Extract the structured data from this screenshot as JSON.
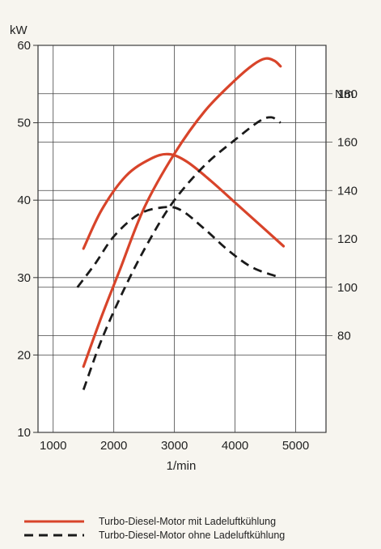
{
  "chart_data": {
    "type": "line",
    "left_unit": "kW",
    "right_unit": "Nm",
    "xlabel": "1/min",
    "x_ticks": [
      1000,
      2000,
      3000,
      4000,
      5000
    ],
    "y_left_ticks": [
      10,
      20,
      30,
      40,
      50,
      60
    ],
    "y_right_ticks": [
      80,
      100,
      120,
      140,
      160,
      180
    ],
    "x_range": [
      750,
      5500
    ],
    "y_left_range": [
      10,
      60
    ],
    "y_right_range": [
      40,
      200
    ],
    "grid": true,
    "legend_position": "bottom",
    "series": [
      {
        "name": "Turbo-Diesel-Motor mit Ladeluftkühlung",
        "axis": "left",
        "quantity": "power",
        "style": "solid",
        "color": "#d8442a",
        "points": [
          [
            1500,
            18.5
          ],
          [
            1800,
            25
          ],
          [
            2100,
            31
          ],
          [
            2500,
            39
          ],
          [
            3000,
            46
          ],
          [
            3500,
            51.5
          ],
          [
            4000,
            55.5
          ],
          [
            4300,
            57.5
          ],
          [
            4500,
            58.3
          ],
          [
            4650,
            58
          ],
          [
            4750,
            57.3
          ]
        ]
      },
      {
        "name": "Turbo-Diesel-Motor mit Ladeluftkühlung",
        "axis": "right",
        "quantity": "torque",
        "style": "solid",
        "color": "#d8442a",
        "points": [
          [
            1500,
            116
          ],
          [
            1800,
            132
          ],
          [
            2200,
            146
          ],
          [
            2600,
            153
          ],
          [
            2900,
            155
          ],
          [
            3200,
            152
          ],
          [
            3600,
            144
          ],
          [
            4000,
            135
          ],
          [
            4400,
            126
          ],
          [
            4800,
            117
          ]
        ]
      },
      {
        "name": "Turbo-Diesel-Motor ohne Ladeluftkühlung",
        "axis": "left",
        "quantity": "power",
        "style": "dashed",
        "color": "#1a1a1a",
        "points": [
          [
            1500,
            15.5
          ],
          [
            1800,
            22
          ],
          [
            2200,
            29
          ],
          [
            2600,
            35
          ],
          [
            3000,
            40
          ],
          [
            3500,
            44.5
          ],
          [
            4000,
            47.8
          ],
          [
            4400,
            50.2
          ],
          [
            4600,
            50.7
          ],
          [
            4750,
            50
          ]
        ]
      },
      {
        "name": "Turbo-Diesel-Motor ohne Ladeluftkühlung",
        "axis": "right",
        "quantity": "torque",
        "style": "dashed",
        "color": "#1a1a1a",
        "points": [
          [
            1400,
            100
          ],
          [
            1700,
            110
          ],
          [
            2000,
            121
          ],
          [
            2400,
            130
          ],
          [
            2800,
            133
          ],
          [
            3100,
            132
          ],
          [
            3500,
            124
          ],
          [
            3900,
            115
          ],
          [
            4300,
            108
          ],
          [
            4750,
            104
          ]
        ]
      }
    ],
    "legend": [
      {
        "label": "Turbo-Diesel-Motor mit Ladeluftkühlung",
        "style": "solid",
        "color": "#d8442a"
      },
      {
        "label": "Turbo-Diesel-Motor ohne Ladeluftkühlung",
        "style": "dashed",
        "color": "#1a1a1a"
      }
    ]
  }
}
